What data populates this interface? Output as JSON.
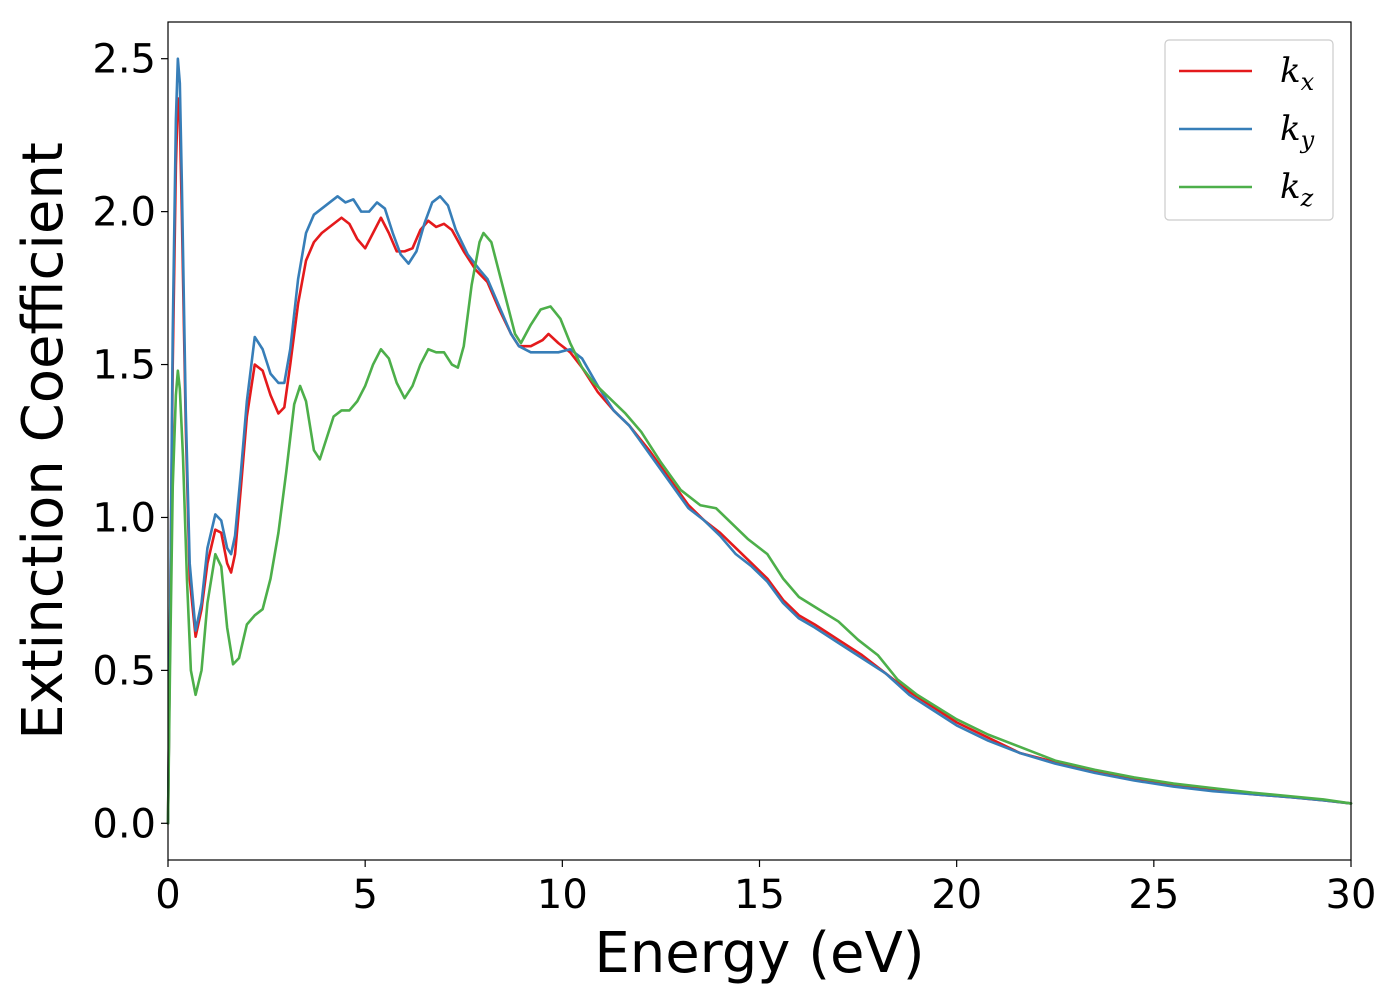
{
  "chart_data": {
    "type": "line",
    "xlabel": "Energy (eV)",
    "ylabel": "Extinction Coefficient",
    "xlim": [
      0,
      30
    ],
    "ylim": [
      -0.12,
      2.62
    ],
    "xticks": [
      0,
      5,
      10,
      15,
      20,
      25,
      30
    ],
    "xtick_labels": [
      "0",
      "5",
      "10",
      "15",
      "20",
      "25",
      "30"
    ],
    "yticks": [
      0.0,
      0.5,
      1.0,
      1.5,
      2.0,
      2.5
    ],
    "ytick_labels": [
      "0.0",
      "0.5",
      "1.0",
      "1.5",
      "2.0",
      "2.5"
    ],
    "grid": false,
    "legend_position": "top-right",
    "series": [
      {
        "name": "k_x",
        "label_main": "k",
        "label_sub": "x",
        "color": "#e41a1c",
        "points": [
          [
            0,
            0
          ],
          [
            0.05,
            0.6
          ],
          [
            0.12,
            1.5
          ],
          [
            0.2,
            2.15
          ],
          [
            0.25,
            2.37
          ],
          [
            0.3,
            2.3
          ],
          [
            0.35,
            2.0
          ],
          [
            0.45,
            1.3
          ],
          [
            0.55,
            0.8
          ],
          [
            0.7,
            0.61
          ],
          [
            0.85,
            0.7
          ],
          [
            1.0,
            0.85
          ],
          [
            1.2,
            0.96
          ],
          [
            1.35,
            0.95
          ],
          [
            1.5,
            0.85
          ],
          [
            1.6,
            0.82
          ],
          [
            1.7,
            0.88
          ],
          [
            1.85,
            1.1
          ],
          [
            2.0,
            1.33
          ],
          [
            2.2,
            1.5
          ],
          [
            2.4,
            1.48
          ],
          [
            2.6,
            1.4
          ],
          [
            2.8,
            1.34
          ],
          [
            2.95,
            1.36
          ],
          [
            3.1,
            1.5
          ],
          [
            3.3,
            1.7
          ],
          [
            3.5,
            1.84
          ],
          [
            3.7,
            1.9
          ],
          [
            3.9,
            1.93
          ],
          [
            4.1,
            1.95
          ],
          [
            4.4,
            1.98
          ],
          [
            4.6,
            1.96
          ],
          [
            4.8,
            1.91
          ],
          [
            5.0,
            1.88
          ],
          [
            5.2,
            1.93
          ],
          [
            5.4,
            1.98
          ],
          [
            5.6,
            1.93
          ],
          [
            5.8,
            1.87
          ],
          [
            6.0,
            1.87
          ],
          [
            6.2,
            1.88
          ],
          [
            6.4,
            1.94
          ],
          [
            6.6,
            1.97
          ],
          [
            6.8,
            1.95
          ],
          [
            7.0,
            1.96
          ],
          [
            7.2,
            1.94
          ],
          [
            7.5,
            1.87
          ],
          [
            7.8,
            1.81
          ],
          [
            8.1,
            1.77
          ],
          [
            8.4,
            1.68
          ],
          [
            8.7,
            1.6
          ],
          [
            8.9,
            1.56
          ],
          [
            9.2,
            1.56
          ],
          [
            9.5,
            1.58
          ],
          [
            9.65,
            1.6
          ],
          [
            9.9,
            1.57
          ],
          [
            10.2,
            1.54
          ],
          [
            10.5,
            1.49
          ],
          [
            10.9,
            1.41
          ],
          [
            11.3,
            1.35
          ],
          [
            11.7,
            1.3
          ],
          [
            12.2,
            1.22
          ],
          [
            12.7,
            1.13
          ],
          [
            13.2,
            1.04
          ],
          [
            13.6,
            0.99
          ],
          [
            14.0,
            0.95
          ],
          [
            14.4,
            0.9
          ],
          [
            14.8,
            0.85
          ],
          [
            15.2,
            0.8
          ],
          [
            15.6,
            0.73
          ],
          [
            16.0,
            0.68
          ],
          [
            16.4,
            0.65
          ],
          [
            17.0,
            0.6
          ],
          [
            17.6,
            0.55
          ],
          [
            18.2,
            0.49
          ],
          [
            18.8,
            0.43
          ],
          [
            19.4,
            0.38
          ],
          [
            20.0,
            0.33
          ],
          [
            20.8,
            0.28
          ],
          [
            21.6,
            0.23
          ],
          [
            22.5,
            0.2
          ],
          [
            23.5,
            0.17
          ],
          [
            24.5,
            0.145
          ],
          [
            25.5,
            0.125
          ],
          [
            26.5,
            0.11
          ],
          [
            27.5,
            0.095
          ],
          [
            28.5,
            0.085
          ],
          [
            29.3,
            0.075
          ],
          [
            30,
            0.065
          ]
        ]
      },
      {
        "name": "k_y",
        "label_main": "k",
        "label_sub": "y",
        "color": "#377eb8",
        "points": [
          [
            0,
            0
          ],
          [
            0.05,
            0.6
          ],
          [
            0.12,
            1.6
          ],
          [
            0.2,
            2.3
          ],
          [
            0.25,
            2.5
          ],
          [
            0.3,
            2.42
          ],
          [
            0.35,
            2.1
          ],
          [
            0.45,
            1.35
          ],
          [
            0.55,
            0.85
          ],
          [
            0.7,
            0.63
          ],
          [
            0.85,
            0.72
          ],
          [
            1.0,
            0.9
          ],
          [
            1.2,
            1.01
          ],
          [
            1.35,
            0.99
          ],
          [
            1.5,
            0.9
          ],
          [
            1.6,
            0.88
          ],
          [
            1.7,
            0.94
          ],
          [
            1.85,
            1.15
          ],
          [
            2.0,
            1.38
          ],
          [
            2.2,
            1.59
          ],
          [
            2.4,
            1.55
          ],
          [
            2.6,
            1.47
          ],
          [
            2.8,
            1.44
          ],
          [
            2.95,
            1.44
          ],
          [
            3.1,
            1.55
          ],
          [
            3.3,
            1.78
          ],
          [
            3.5,
            1.93
          ],
          [
            3.7,
            1.99
          ],
          [
            3.9,
            2.01
          ],
          [
            4.1,
            2.03
          ],
          [
            4.3,
            2.05
          ],
          [
            4.5,
            2.03
          ],
          [
            4.7,
            2.04
          ],
          [
            4.9,
            2.0
          ],
          [
            5.1,
            2.0
          ],
          [
            5.3,
            2.03
          ],
          [
            5.5,
            2.01
          ],
          [
            5.7,
            1.93
          ],
          [
            5.9,
            1.86
          ],
          [
            6.1,
            1.83
          ],
          [
            6.3,
            1.87
          ],
          [
            6.5,
            1.96
          ],
          [
            6.7,
            2.03
          ],
          [
            6.9,
            2.05
          ],
          [
            7.1,
            2.02
          ],
          [
            7.3,
            1.94
          ],
          [
            7.6,
            1.86
          ],
          [
            7.9,
            1.81
          ],
          [
            8.1,
            1.78
          ],
          [
            8.4,
            1.69
          ],
          [
            8.7,
            1.6
          ],
          [
            8.9,
            1.56
          ],
          [
            9.2,
            1.54
          ],
          [
            9.5,
            1.54
          ],
          [
            9.9,
            1.54
          ],
          [
            10.2,
            1.55
          ],
          [
            10.5,
            1.52
          ],
          [
            10.9,
            1.43
          ],
          [
            11.3,
            1.35
          ],
          [
            11.7,
            1.3
          ],
          [
            12.2,
            1.21
          ],
          [
            12.7,
            1.12
          ],
          [
            13.2,
            1.03
          ],
          [
            13.6,
            0.99
          ],
          [
            14.0,
            0.94
          ],
          [
            14.4,
            0.88
          ],
          [
            14.8,
            0.84
          ],
          [
            15.2,
            0.79
          ],
          [
            15.6,
            0.72
          ],
          [
            16.0,
            0.67
          ],
          [
            16.4,
            0.64
          ],
          [
            17.0,
            0.59
          ],
          [
            17.6,
            0.54
          ],
          [
            18.2,
            0.49
          ],
          [
            18.8,
            0.42
          ],
          [
            19.4,
            0.37
          ],
          [
            20.0,
            0.32
          ],
          [
            20.8,
            0.27
          ],
          [
            21.6,
            0.23
          ],
          [
            22.5,
            0.195
          ],
          [
            23.5,
            0.165
          ],
          [
            24.5,
            0.14
          ],
          [
            25.5,
            0.12
          ],
          [
            26.5,
            0.105
          ],
          [
            27.5,
            0.095
          ],
          [
            28.5,
            0.085
          ],
          [
            29.3,
            0.075
          ],
          [
            30,
            0.065
          ]
        ]
      },
      {
        "name": "k_z",
        "label_main": "k",
        "label_sub": "z",
        "color": "#4daf4a",
        "points": [
          [
            0,
            0
          ],
          [
            0.05,
            0.5
          ],
          [
            0.12,
            1.1
          ],
          [
            0.2,
            1.4
          ],
          [
            0.25,
            1.48
          ],
          [
            0.3,
            1.42
          ],
          [
            0.38,
            1.2
          ],
          [
            0.48,
            0.8
          ],
          [
            0.58,
            0.5
          ],
          [
            0.7,
            0.42
          ],
          [
            0.85,
            0.5
          ],
          [
            1.0,
            0.72
          ],
          [
            1.2,
            0.88
          ],
          [
            1.35,
            0.84
          ],
          [
            1.5,
            0.64
          ],
          [
            1.65,
            0.52
          ],
          [
            1.8,
            0.54
          ],
          [
            2.0,
            0.65
          ],
          [
            2.2,
            0.68
          ],
          [
            2.4,
            0.7
          ],
          [
            2.6,
            0.8
          ],
          [
            2.8,
            0.95
          ],
          [
            3.0,
            1.15
          ],
          [
            3.2,
            1.37
          ],
          [
            3.35,
            1.43
          ],
          [
            3.5,
            1.38
          ],
          [
            3.7,
            1.22
          ],
          [
            3.85,
            1.19
          ],
          [
            4.0,
            1.25
          ],
          [
            4.2,
            1.33
          ],
          [
            4.4,
            1.35
          ],
          [
            4.6,
            1.35
          ],
          [
            4.8,
            1.38
          ],
          [
            5.0,
            1.43
          ],
          [
            5.2,
            1.5
          ],
          [
            5.4,
            1.55
          ],
          [
            5.6,
            1.52
          ],
          [
            5.8,
            1.44
          ],
          [
            6.0,
            1.39
          ],
          [
            6.2,
            1.43
          ],
          [
            6.4,
            1.5
          ],
          [
            6.6,
            1.55
          ],
          [
            6.8,
            1.54
          ],
          [
            7.0,
            1.54
          ],
          [
            7.2,
            1.5
          ],
          [
            7.35,
            1.49
          ],
          [
            7.5,
            1.56
          ],
          [
            7.7,
            1.76
          ],
          [
            7.9,
            1.9
          ],
          [
            8.0,
            1.93
          ],
          [
            8.2,
            1.9
          ],
          [
            8.4,
            1.8
          ],
          [
            8.6,
            1.7
          ],
          [
            8.8,
            1.6
          ],
          [
            8.95,
            1.57
          ],
          [
            9.2,
            1.63
          ],
          [
            9.45,
            1.68
          ],
          [
            9.7,
            1.69
          ],
          [
            9.95,
            1.65
          ],
          [
            10.2,
            1.57
          ],
          [
            10.5,
            1.49
          ],
          [
            10.8,
            1.44
          ],
          [
            11.2,
            1.39
          ],
          [
            11.6,
            1.34
          ],
          [
            12.0,
            1.28
          ],
          [
            12.5,
            1.18
          ],
          [
            13.0,
            1.09
          ],
          [
            13.5,
            1.04
          ],
          [
            13.9,
            1.03
          ],
          [
            14.3,
            0.98
          ],
          [
            14.7,
            0.93
          ],
          [
            15.2,
            0.88
          ],
          [
            15.6,
            0.8
          ],
          [
            16.0,
            0.74
          ],
          [
            16.5,
            0.7
          ],
          [
            17.0,
            0.66
          ],
          [
            17.5,
            0.6
          ],
          [
            18.0,
            0.55
          ],
          [
            18.5,
            0.47
          ],
          [
            19.0,
            0.42
          ],
          [
            19.5,
            0.38
          ],
          [
            20.0,
            0.34
          ],
          [
            20.8,
            0.29
          ],
          [
            21.6,
            0.25
          ],
          [
            22.5,
            0.205
          ],
          [
            23.5,
            0.175
          ],
          [
            24.5,
            0.15
          ],
          [
            25.5,
            0.13
          ],
          [
            26.5,
            0.115
          ],
          [
            27.5,
            0.1
          ],
          [
            28.5,
            0.088
          ],
          [
            29.3,
            0.078
          ],
          [
            30,
            0.065
          ]
        ]
      }
    ]
  }
}
